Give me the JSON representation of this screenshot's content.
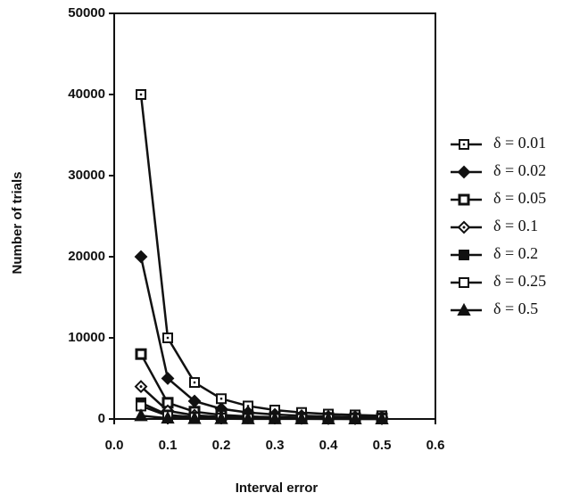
{
  "chart_data": {
    "type": "line",
    "xlabel": "Interval error",
    "ylabel": "Number of trials",
    "x": [
      0.05,
      0.1,
      0.15,
      0.2,
      0.25,
      0.3,
      0.35,
      0.4,
      0.45,
      0.5
    ],
    "xlim": [
      0,
      0.6
    ],
    "xticks": [
      {
        "value": 0,
        "label": "0.0"
      },
      0.1,
      0.2,
      0.3,
      0.4,
      0.5,
      0.6
    ],
    "ylim": [
      0,
      50000
    ],
    "yticks": [
      0,
      10000,
      20000,
      30000,
      40000,
      50000
    ],
    "legend": "right",
    "series": [
      {
        "name": "δ = 0.01",
        "color": "#111111",
        "marker": "square-dot",
        "values": [
          40000,
          10000,
          4500,
          2500,
          1600,
          1100,
          800,
          600,
          500,
          400
        ]
      },
      {
        "name": "δ = 0.02",
        "color": "#111111",
        "marker": "diamond",
        "values": [
          20000,
          5000,
          2200,
          1250,
          800,
          550,
          400,
          300,
          250,
          200
        ]
      },
      {
        "name": "δ = 0.05",
        "color": "#111111",
        "marker": "square-thick",
        "values": [
          8000,
          2000,
          900,
          500,
          320,
          220,
          160,
          125,
          100,
          80
        ]
      },
      {
        "name": "δ = 0.1",
        "color": "#111111",
        "marker": "diamond-open",
        "values": [
          4000,
          1000,
          450,
          250,
          160,
          110,
          80,
          60,
          50,
          40
        ]
      },
      {
        "name": "δ = 0.2",
        "color": "#111111",
        "marker": "square",
        "values": [
          2000,
          500,
          220,
          125,
          80,
          55,
          40,
          30,
          25,
          20
        ]
      },
      {
        "name": "δ = 0.25",
        "color": "#111111",
        "marker": "square-open",
        "values": [
          1600,
          400,
          180,
          100,
          65,
          45,
          30,
          25,
          20,
          15
        ]
      },
      {
        "name": "δ = 0.5",
        "color": "#111111",
        "marker": "triangle",
        "values": [
          400,
          100,
          45,
          25,
          15,
          10,
          8,
          6,
          5,
          4
        ]
      }
    ]
  }
}
